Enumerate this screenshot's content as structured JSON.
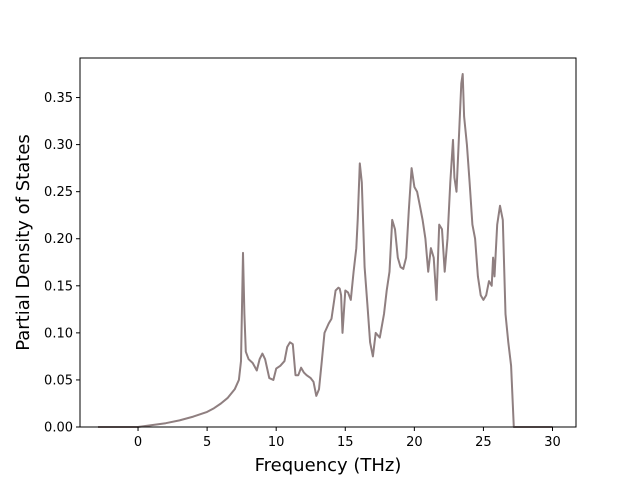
{
  "chart_data": {
    "type": "line",
    "title": "",
    "xlabel": "Frequency (THz)",
    "ylabel": "Partial Density of States",
    "xlim": [
      -4.2,
      31.7
    ],
    "ylim": [
      0.0,
      0.392
    ],
    "xticks": [
      0,
      5,
      10,
      15,
      20,
      25,
      30
    ],
    "yticks": [
      0.0,
      0.05,
      0.1,
      0.15,
      0.2,
      0.25,
      0.3,
      0.35
    ],
    "xtick_labels": [
      "0",
      "5",
      "10",
      "15",
      "20",
      "25",
      "30"
    ],
    "ytick_labels": [
      "0.00",
      "0.05",
      "0.10",
      "0.15",
      "0.20",
      "0.25",
      "0.30",
      "0.35"
    ],
    "grid": false,
    "legend": false,
    "line_color": "#8f7f80",
    "series": [
      {
        "name": "",
        "x": [
          -2.9,
          0.0,
          1.0,
          2.0,
          3.0,
          4.0,
          5.0,
          5.5,
          6.0,
          6.5,
          7.0,
          7.3,
          7.45,
          7.6,
          7.7,
          7.8,
          8.0,
          8.3,
          8.6,
          8.8,
          9.0,
          9.2,
          9.5,
          9.8,
          10.0,
          10.3,
          10.6,
          10.8,
          11.0,
          11.2,
          11.4,
          11.6,
          11.8,
          12.0,
          12.2,
          12.5,
          12.7,
          12.9,
          13.1,
          13.3,
          13.5,
          13.8,
          14.0,
          14.3,
          14.5,
          14.6,
          14.7,
          14.8,
          15.0,
          15.2,
          15.4,
          15.6,
          15.8,
          15.9,
          16.05,
          16.2,
          16.4,
          16.6,
          16.8,
          17.0,
          17.2,
          17.5,
          17.8,
          18.0,
          18.2,
          18.4,
          18.6,
          18.8,
          19.0,
          19.2,
          19.4,
          19.6,
          19.8,
          20.0,
          20.2,
          20.4,
          20.6,
          20.8,
          21.0,
          21.2,
          21.4,
          21.6,
          21.8,
          22.0,
          22.2,
          22.4,
          22.6,
          22.8,
          22.9,
          23.05,
          23.2,
          23.4,
          23.5,
          23.6,
          23.8,
          24.0,
          24.2,
          24.4,
          24.6,
          24.8,
          25.0,
          25.2,
          25.4,
          25.6,
          25.7,
          25.8,
          26.0,
          26.2,
          26.4,
          26.6,
          26.8,
          27.0,
          27.2,
          27.4,
          27.6,
          30.0
        ],
        "values": [
          0.0,
          0.0,
          0.002,
          0.004,
          0.007,
          0.011,
          0.016,
          0.02,
          0.025,
          0.031,
          0.04,
          0.05,
          0.07,
          0.185,
          0.12,
          0.08,
          0.072,
          0.068,
          0.06,
          0.072,
          0.078,
          0.072,
          0.052,
          0.05,
          0.062,
          0.065,
          0.07,
          0.085,
          0.09,
          0.088,
          0.055,
          0.055,
          0.063,
          0.058,
          0.055,
          0.052,
          0.048,
          0.033,
          0.04,
          0.07,
          0.1,
          0.11,
          0.115,
          0.145,
          0.148,
          0.147,
          0.14,
          0.1,
          0.145,
          0.143,
          0.135,
          0.165,
          0.19,
          0.22,
          0.28,
          0.26,
          0.17,
          0.13,
          0.09,
          0.075,
          0.1,
          0.095,
          0.12,
          0.145,
          0.165,
          0.22,
          0.21,
          0.18,
          0.17,
          0.168,
          0.18,
          0.23,
          0.275,
          0.255,
          0.25,
          0.235,
          0.22,
          0.2,
          0.165,
          0.19,
          0.18,
          0.135,
          0.215,
          0.21,
          0.165,
          0.2,
          0.26,
          0.305,
          0.265,
          0.25,
          0.3,
          0.365,
          0.375,
          0.33,
          0.3,
          0.26,
          0.215,
          0.2,
          0.16,
          0.14,
          0.135,
          0.14,
          0.155,
          0.15,
          0.18,
          0.16,
          0.215,
          0.235,
          0.22,
          0.12,
          0.09,
          0.065,
          0.0,
          0.0,
          0.0,
          0.0
        ]
      }
    ]
  }
}
